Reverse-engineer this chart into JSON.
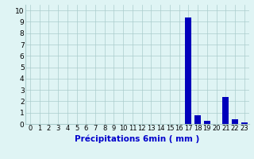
{
  "categories": [
    0,
    1,
    2,
    3,
    4,
    5,
    6,
    7,
    8,
    9,
    10,
    11,
    12,
    13,
    14,
    15,
    16,
    17,
    18,
    19,
    20,
    21,
    22,
    23
  ],
  "values": [
    0,
    0,
    0,
    0,
    0,
    0,
    0,
    0,
    0,
    0,
    0,
    0,
    0,
    0,
    0,
    0,
    0,
    9.4,
    0.8,
    0.3,
    0,
    2.4,
    0.4,
    0.15
  ],
  "bar_color": "#0000bb",
  "bg_color": "#dff4f4",
  "grid_color": "#aacccc",
  "xlabel": "Précipitations 6min ( mm )",
  "xlabel_color": "#0000cc",
  "xlabel_fontsize": 7.5,
  "ylabel_ticks": [
    0,
    1,
    2,
    3,
    4,
    5,
    6,
    7,
    8,
    9,
    10
  ],
  "xlim": [
    -0.5,
    23.5
  ],
  "ylim": [
    0,
    10.5
  ],
  "bar_width": 0.7,
  "tick_fontsize": 6,
  "ytick_fontsize": 6.5
}
